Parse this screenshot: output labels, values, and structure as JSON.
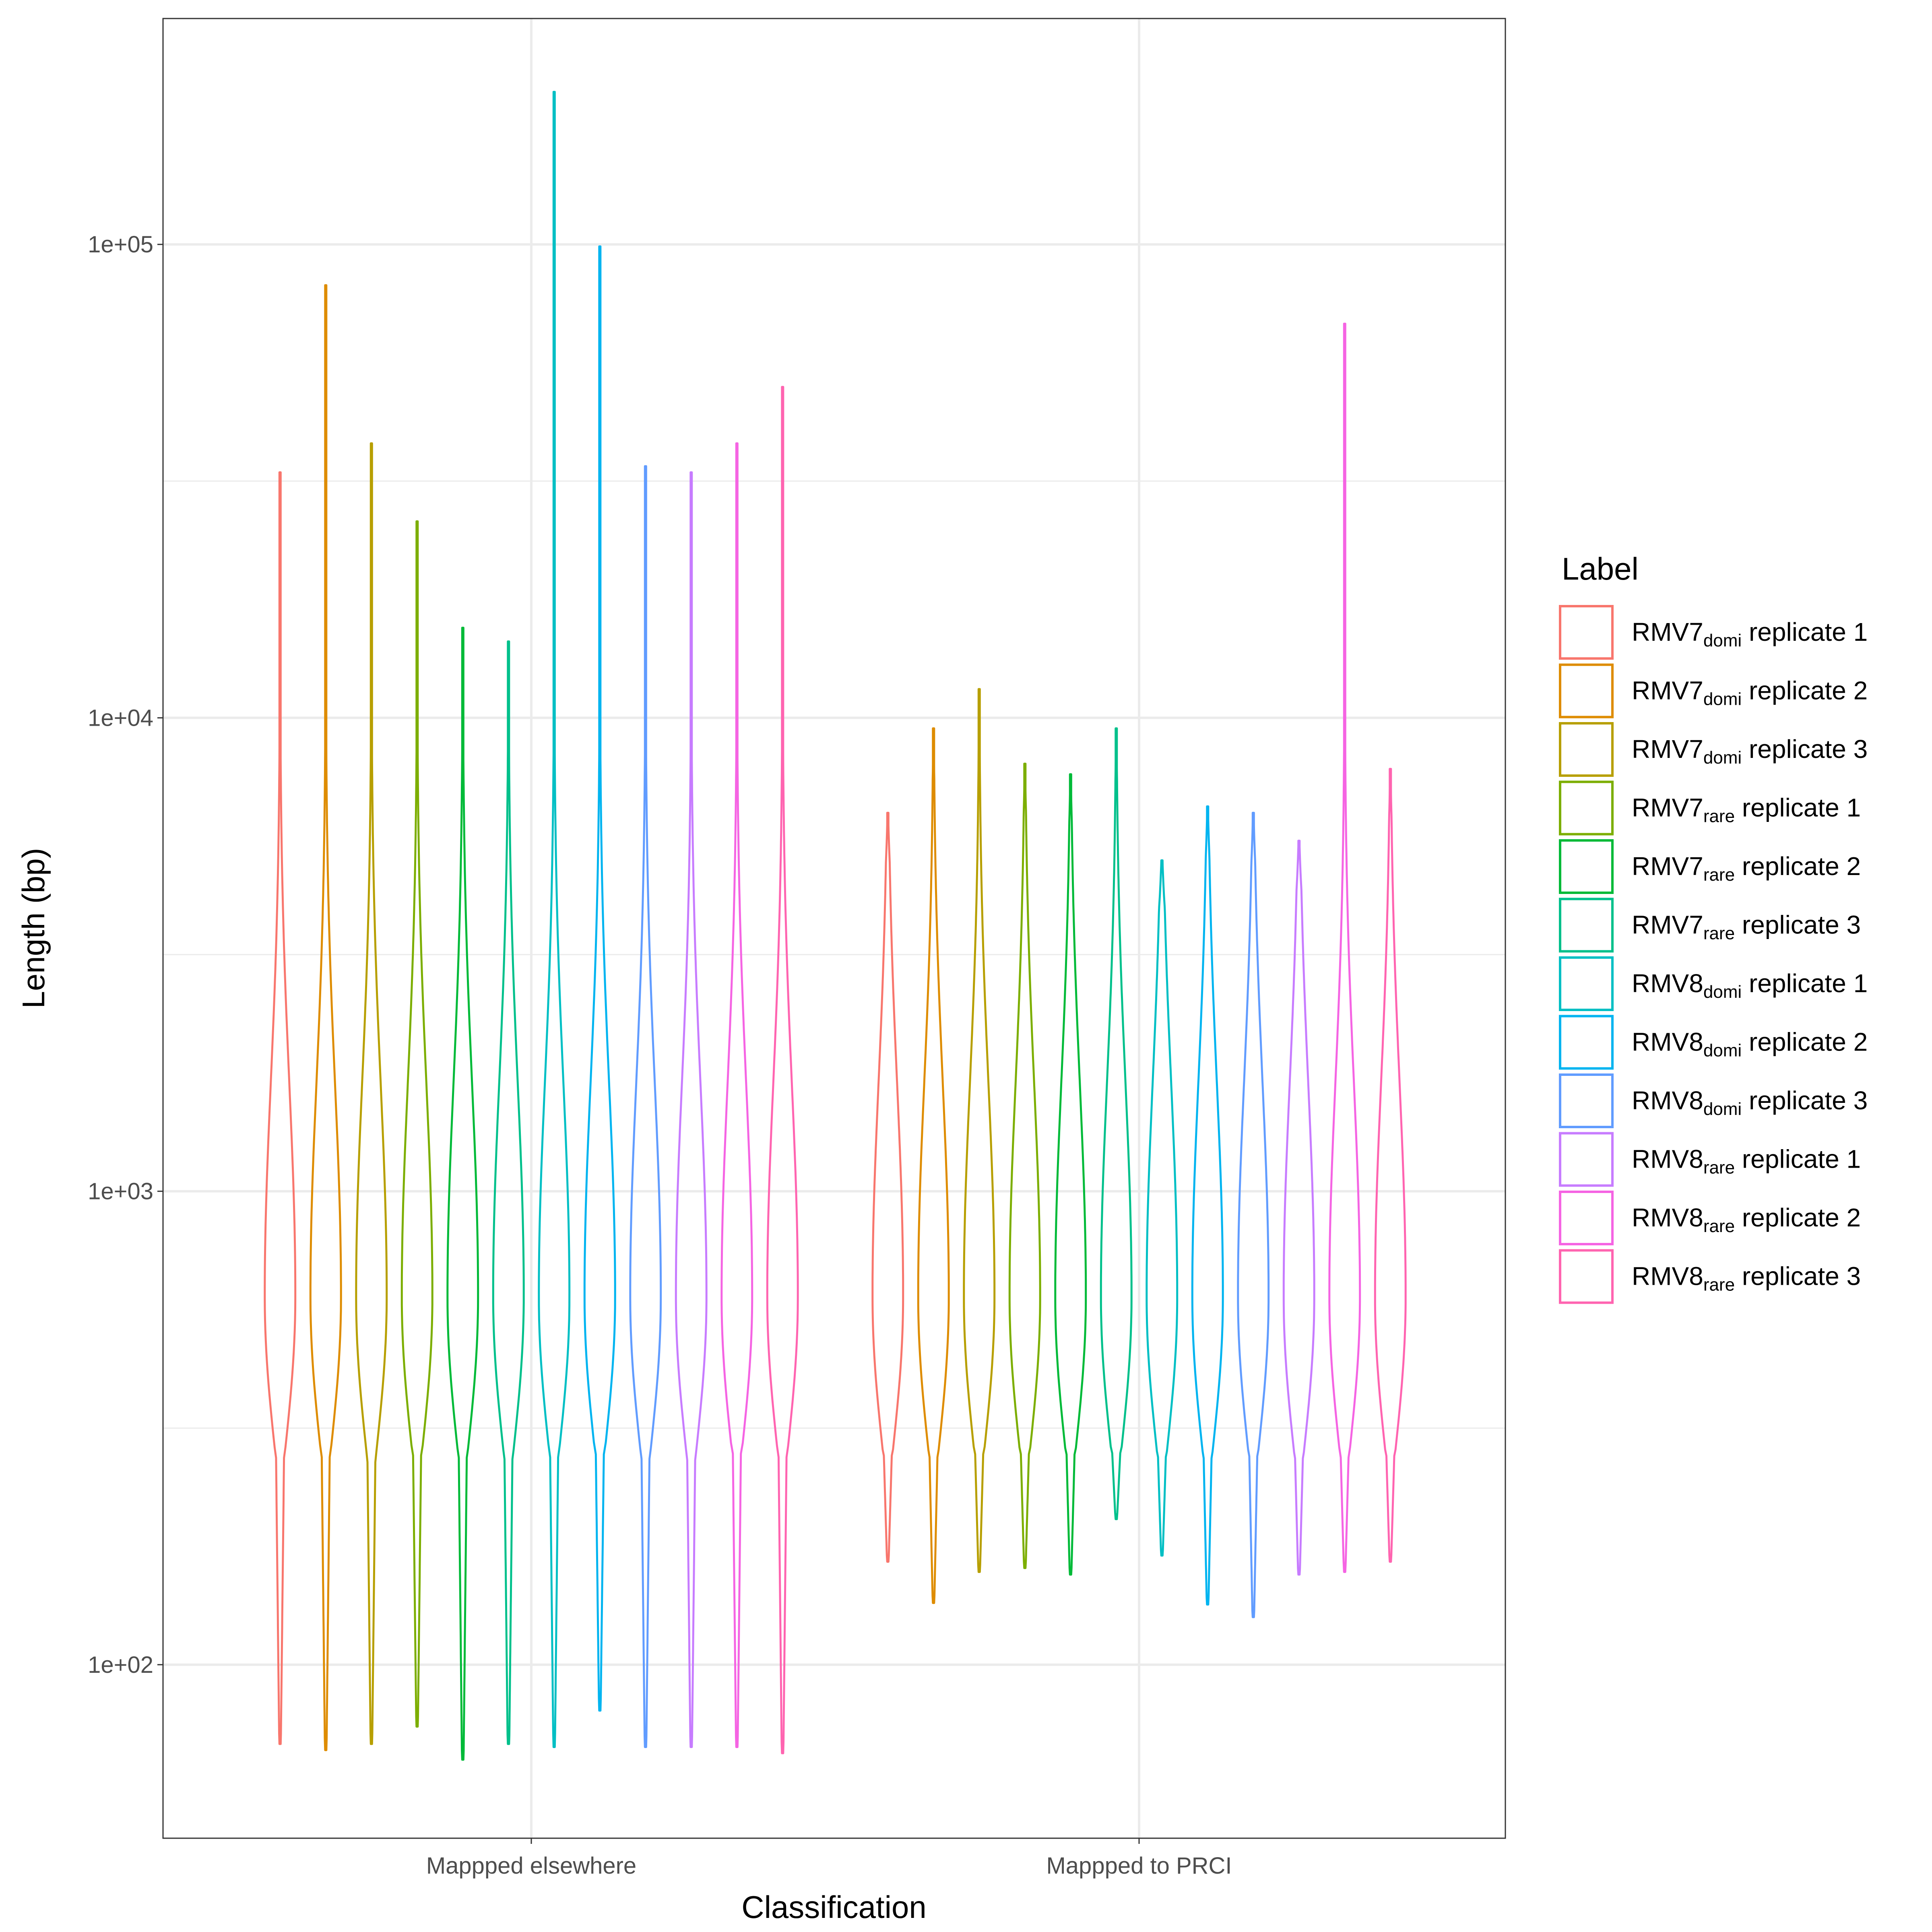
{
  "chart_data": {
    "type": "violin",
    "xlabel": "Classification",
    "ylabel": "Length (bp)",
    "y_scale": "log10",
    "ylim": [
      43,
      300000
    ],
    "y_ticks": [
      {
        "value": 100,
        "label": "1e+02"
      },
      {
        "value": 1000,
        "label": "1e+03"
      },
      {
        "value": 10000,
        "label": "1e+04"
      },
      {
        "value": 100000,
        "label": "1e+05"
      }
    ],
    "y_minor_gridlines": [
      316,
      3162,
      31623
    ],
    "categories": [
      "Mappped elsewhere",
      "Mappped to PRCI"
    ],
    "grid": true,
    "legend": {
      "title": "Label",
      "position": "right",
      "entries": [
        {
          "base": "RMV7",
          "sub": "domi",
          "rest": " replicate 1",
          "color": "#F8766D"
        },
        {
          "base": "RMV7",
          "sub": "domi",
          "rest": " replicate 2",
          "color": "#DE8C00"
        },
        {
          "base": "RMV7",
          "sub": "domi",
          "rest": " replicate 3",
          "color": "#B79F00"
        },
        {
          "base": "RMV7",
          "sub": "rare",
          "rest": " replicate 1",
          "color": "#7CAE00"
        },
        {
          "base": "RMV7",
          "sub": "rare",
          "rest": " replicate 2",
          "color": "#00BA38"
        },
        {
          "base": "RMV7",
          "sub": "rare",
          "rest": " replicate 3",
          "color": "#00C08B"
        },
        {
          "base": "RMV8",
          "sub": "domi",
          "rest": " replicate 1",
          "color": "#00BFC4"
        },
        {
          "base": "RMV8",
          "sub": "domi",
          "rest": " replicate 2",
          "color": "#00B4F0"
        },
        {
          "base": "RMV8",
          "sub": "domi",
          "rest": " replicate 3",
          "color": "#619CFF"
        },
        {
          "base": "RMV8",
          "sub": "rare",
          "rest": " replicate 1",
          "color": "#C77CFF"
        },
        {
          "base": "RMV8",
          "sub": "rare",
          "rest": " replicate 2",
          "color": "#F564E3"
        },
        {
          "base": "RMV8",
          "sub": "rare",
          "rest": " replicate 3",
          "color": "#FF64B0"
        }
      ]
    },
    "series": [
      {
        "name": "RMV7domi replicate 1",
        "color": "#F8766D",
        "min": [
          68,
          165
        ],
        "max": [
          33000,
          6300
        ]
      },
      {
        "name": "RMV7domi replicate 2",
        "color": "#DE8C00",
        "min": [
          66,
          135
        ],
        "max": [
          82000,
          9500
        ]
      },
      {
        "name": "RMV7domi replicate 3",
        "color": "#B79F00",
        "min": [
          68,
          157
        ],
        "max": [
          38000,
          11500
        ]
      },
      {
        "name": "RMV7rare replicate 1",
        "color": "#7CAE00",
        "min": [
          74,
          160
        ],
        "max": [
          26000,
          8000
        ]
      },
      {
        "name": "RMV7rare replicate 2",
        "color": "#00BA38",
        "min": [
          63,
          155
        ],
        "max": [
          15500,
          7600
        ]
      },
      {
        "name": "RMV7rare replicate 3",
        "color": "#00C08B",
        "min": [
          68,
          203
        ],
        "max": [
          14500,
          9500
        ]
      },
      {
        "name": "RMV8domi replicate 1",
        "color": "#00BFC4",
        "min": [
          67,
          170
        ],
        "max": [
          210000,
          5000
        ]
      },
      {
        "name": "RMV8domi replicate 2",
        "color": "#00B4F0",
        "min": [
          80,
          134
        ],
        "max": [
          99000,
          6500
        ]
      },
      {
        "name": "RMV8domi replicate 3",
        "color": "#619CFF",
        "min": [
          67,
          126
        ],
        "max": [
          34000,
          6300
        ]
      },
      {
        "name": "RMV8rare replicate 1",
        "color": "#C77CFF",
        "min": [
          67,
          155
        ],
        "max": [
          33000,
          5500
        ]
      },
      {
        "name": "RMV8rare replicate 2",
        "color": "#F564E3",
        "min": [
          67,
          157
        ],
        "max": [
          38000,
          68000
        ]
      },
      {
        "name": "RMV8rare replicate 3",
        "color": "#FF64B0",
        "min": [
          65,
          165
        ],
        "max": [
          50000,
          7800
        ]
      }
    ]
  }
}
